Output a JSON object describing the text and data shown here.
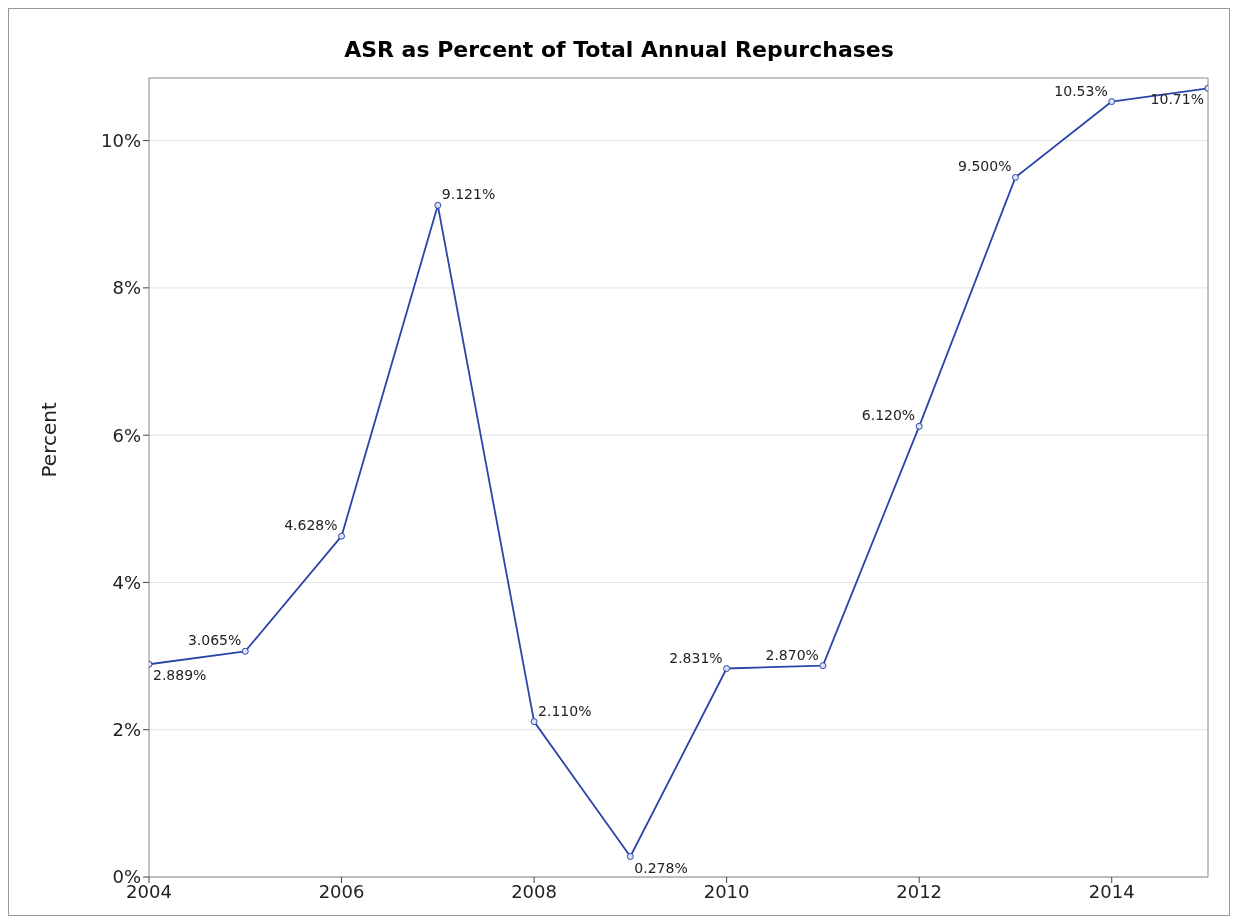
{
  "chart_data": {
    "type": "line",
    "title": "ASR as Percent of Total Annual Repurchases",
    "ylabel": "Percent",
    "x": [
      2004,
      2005,
      2006,
      2007,
      2008,
      2009,
      2010,
      2011,
      2012,
      2013,
      2014,
      2015
    ],
    "series": [
      {
        "color": "#2a44a8",
        "values": [
          2.889,
          3.065,
          4.628,
          9.121,
          2.11,
          0.278,
          2.831,
          2.87,
          6.12,
          9.5,
          10.53,
          10.71
        ],
        "value_labels": [
          "2.889%",
          "3.065%",
          "4.628%",
          "9.121%",
          "2.110%",
          "0.278%",
          "2.831%",
          "2.870%",
          "6.120%",
          "9.500%",
          "10.53%",
          "10.71%"
        ]
      }
    ],
    "xlim": [
      2004,
      2015
    ],
    "xticks": [
      2004,
      2006,
      2008,
      2010,
      2012,
      2014
    ],
    "ylim": [
      0,
      10.85
    ],
    "yticks": [
      {
        "value": 0,
        "label": "0%"
      },
      {
        "value": 2,
        "label": "2%"
      },
      {
        "value": 4,
        "label": "4%"
      },
      {
        "value": 6,
        "label": "6%"
      },
      {
        "value": 8,
        "label": "8%"
      },
      {
        "value": 10,
        "label": "10%"
      }
    ],
    "grid": "y",
    "marker": "circle",
    "line_style": "solid"
  }
}
